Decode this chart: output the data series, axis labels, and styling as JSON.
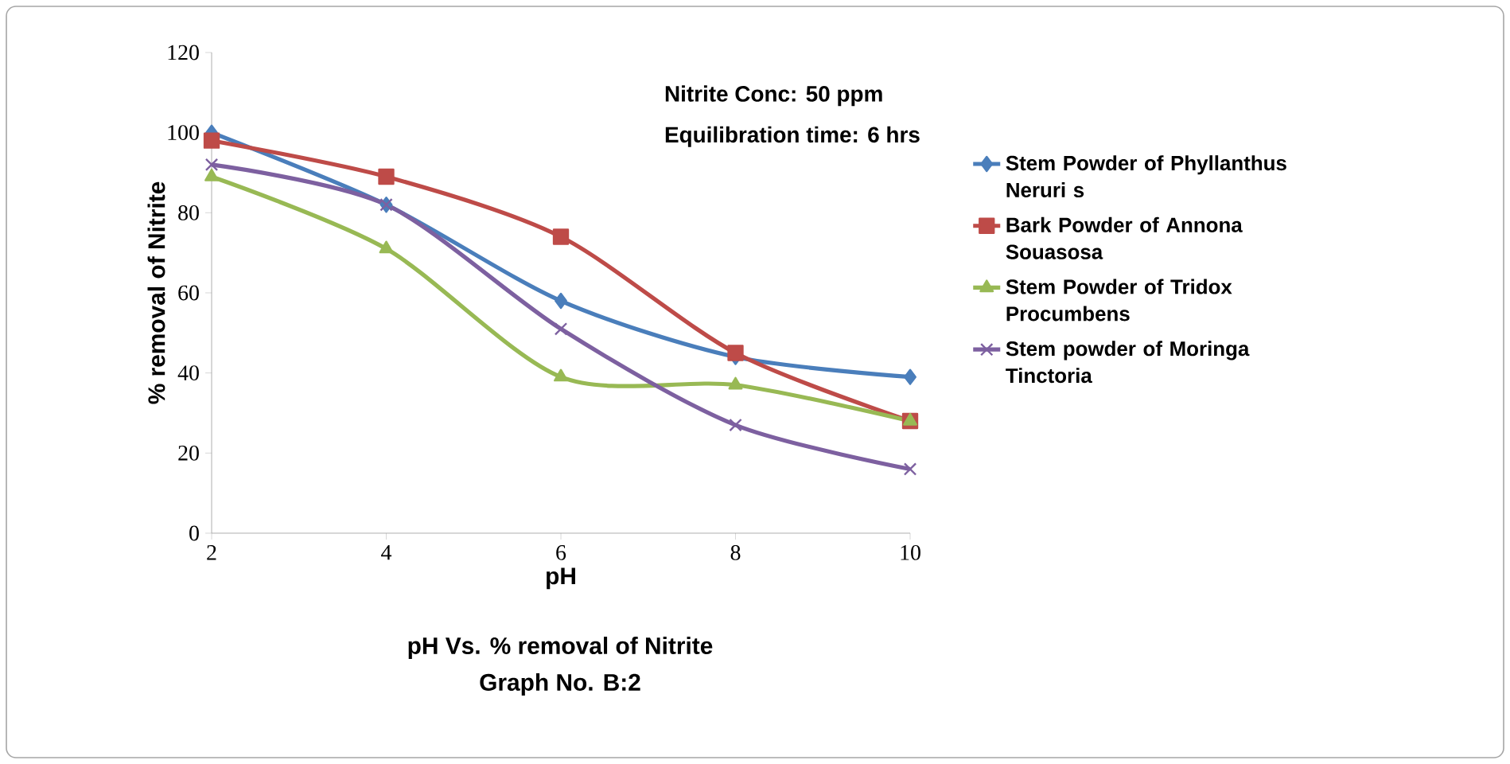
{
  "chart_data": {
    "type": "line",
    "title": "pH Vs. %  removal of Nitrite",
    "subtitle": "Graph No. B:2",
    "xlabel": "pH",
    "ylabel": "% removal of Nitrite",
    "annotations": [
      "Nitrite Conc: 50 ppm",
      "Equilibration time: 6 hrs"
    ],
    "categories": [
      "2",
      "4",
      "6",
      "8",
      "10"
    ],
    "ylim": [
      0,
      120
    ],
    "yticks": [
      0,
      20,
      40,
      60,
      80,
      100,
      120
    ],
    "legend": "right",
    "grid": false,
    "series": [
      {
        "name": "Stem Powder of Phyllanthus Neruri s",
        "color": "#4a7ebb",
        "marker": "diamond",
        "values": [
          100,
          82,
          58,
          44,
          39
        ]
      },
      {
        "name": "Bark Powder of  Annona Souasosa",
        "color": "#be4b48",
        "marker": "square",
        "values": [
          98,
          89,
          74,
          45,
          28
        ]
      },
      {
        "name": "Stem Powder of Tridox Procumbens",
        "color": "#98b954",
        "marker": "triangle",
        "values": [
          89,
          71,
          39,
          37,
          28
        ]
      },
      {
        "name": "Stem powder of Moringa Tinctoria",
        "color": "#7d60a0",
        "marker": "cross",
        "values": [
          92,
          82,
          51,
          27,
          16
        ]
      }
    ]
  }
}
